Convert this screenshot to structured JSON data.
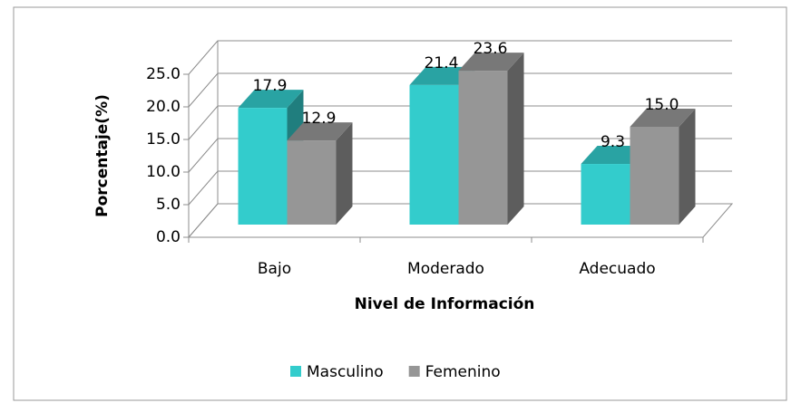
{
  "chart_data": {
    "type": "bar3d",
    "y_label": "Porcentaje(%)",
    "x_label": "Nivel de Información",
    "categories": [
      "Bajo",
      "Moderado",
      "Adecuado"
    ],
    "series": [
      {
        "name": "Masculino",
        "color": "#33cccc",
        "values": [
          17.9,
          21.4,
          9.3
        ],
        "value_labels": [
          "17.9",
          "21.4",
          "9.3"
        ]
      },
      {
        "name": "Femenino",
        "color": "#969696",
        "values": [
          12.9,
          23.6,
          15.0
        ],
        "value_labels": [
          "12.9",
          "23.6",
          "15.0"
        ]
      }
    ],
    "ylim": [
      0,
      25
    ],
    "yticks": [
      {
        "value": 0,
        "label": "0.0"
      },
      {
        "value": 5,
        "label": "5.0"
      },
      {
        "value": 10,
        "label": "10.0"
      },
      {
        "value": 15,
        "label": "15.0"
      },
      {
        "value": 20,
        "label": "20.0"
      },
      {
        "value": 25,
        "label": "25.0"
      }
    ],
    "grid": true,
    "legend": "bottom"
  }
}
